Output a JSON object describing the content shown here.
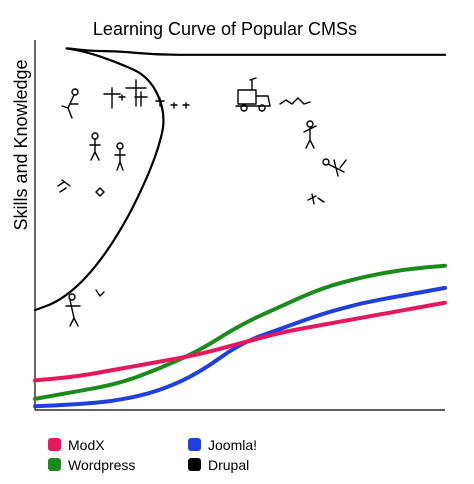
{
  "chart_data": {
    "type": "line",
    "title": "Learning Curve of Popular CMSs",
    "xlabel": "",
    "ylabel": "Skills and Knowledge",
    "xlim": [
      0,
      100
    ],
    "ylim": [
      0,
      100
    ],
    "grid": false,
    "legend_position": "bottom",
    "series": [
      {
        "name": "ModX",
        "color": "#e8175d",
        "x": [
          0,
          10,
          20,
          30,
          40,
          50,
          60,
          70,
          80,
          90,
          100
        ],
        "y": [
          8,
          9,
          11,
          13,
          15,
          18,
          21,
          23,
          25,
          27,
          29
        ]
      },
      {
        "name": "Wordpress",
        "color": "#1a8a1a",
        "x": [
          0,
          10,
          20,
          30,
          40,
          50,
          60,
          70,
          80,
          90,
          100
        ],
        "y": [
          3,
          5,
          7,
          11,
          16,
          23,
          28,
          33,
          36,
          38,
          39
        ]
      },
      {
        "name": "Joomla!",
        "color": "#1f3fe0",
        "x": [
          0,
          10,
          20,
          30,
          40,
          50,
          60,
          70,
          80,
          90,
          100
        ],
        "y": [
          1,
          1.5,
          2.5,
          5,
          10,
          18,
          22,
          26,
          29,
          31,
          33
        ]
      },
      {
        "name": "Drupal",
        "color": "#000000",
        "x": [
          0,
          5,
          10,
          15,
          20,
          25,
          30,
          32,
          28,
          20,
          12,
          6,
          14,
          20,
          30,
          40,
          50,
          60,
          70,
          80,
          90,
          100
        ],
        "y": [
          27,
          29,
          33,
          39,
          47,
          57,
          70,
          80,
          90,
          94,
          97,
          98,
          97,
          97,
          96,
          96,
          96,
          96,
          96,
          96,
          96,
          96
        ]
      }
    ]
  }
}
